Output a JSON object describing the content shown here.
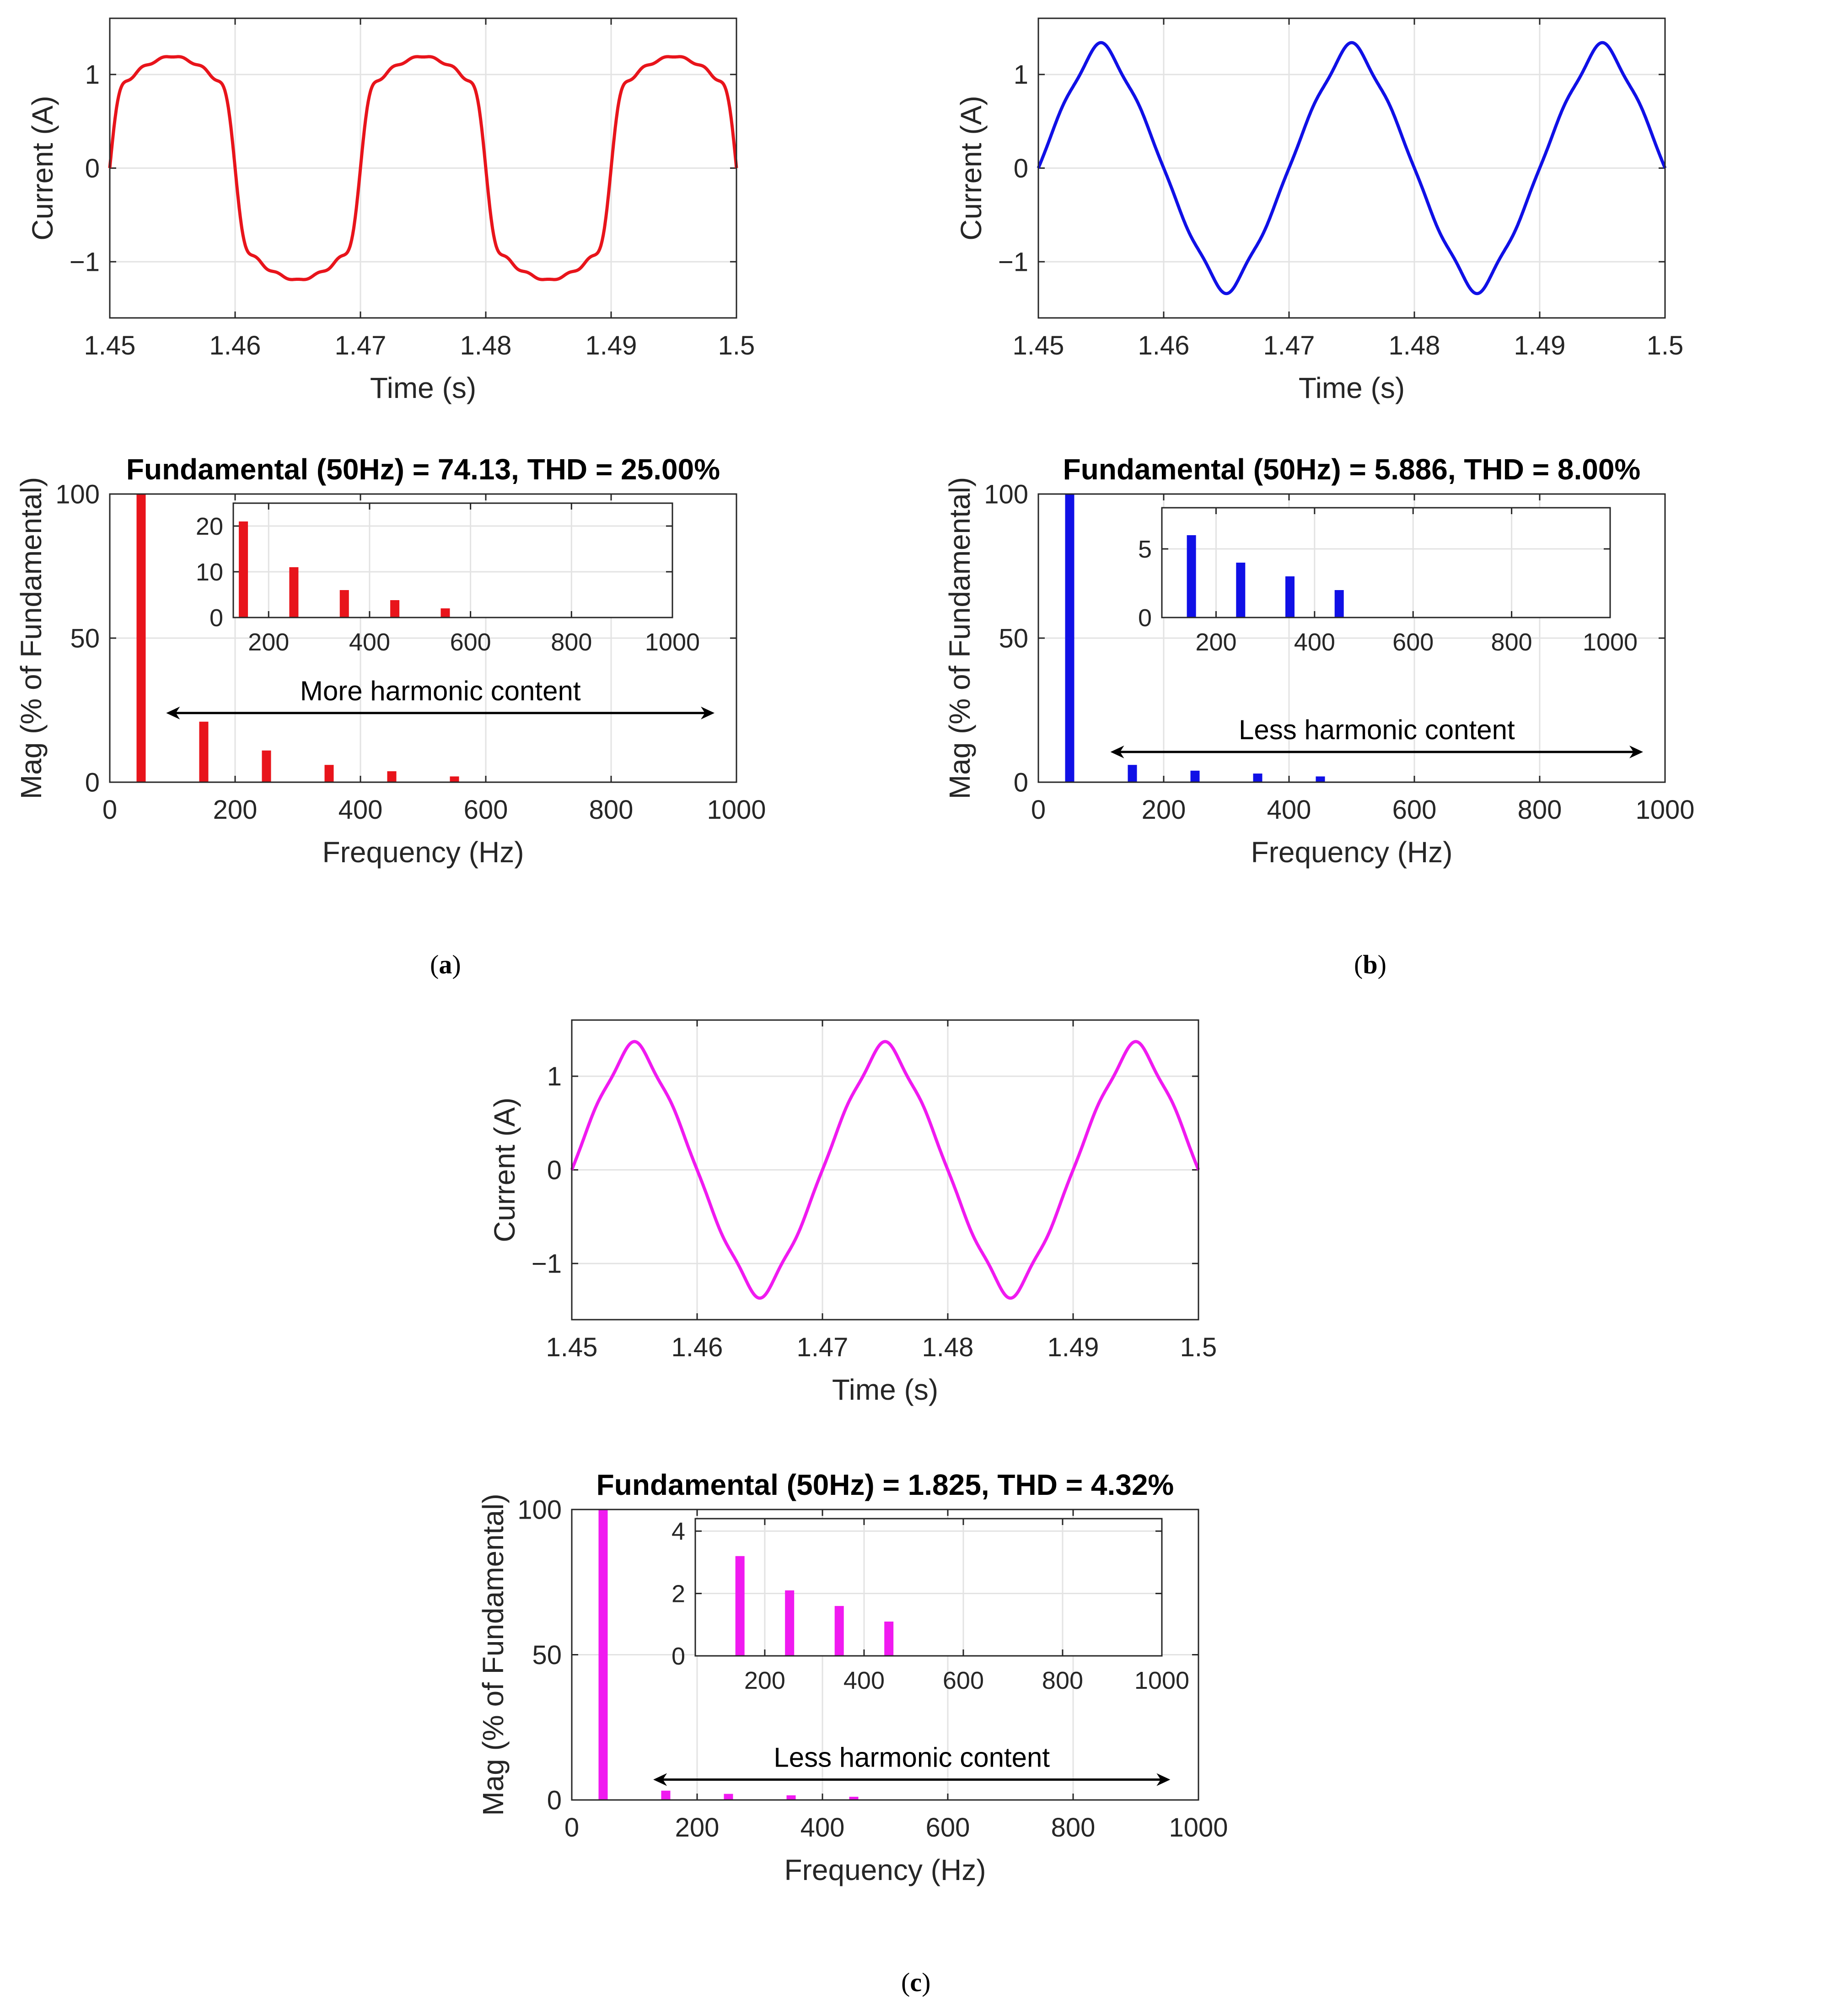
{
  "panels": [
    {
      "letter": "a",
      "color": "#e8141b",
      "time": {
        "waveform": "quasi-square",
        "amplitude": 1.19,
        "xlabel": "Time (s)",
        "ylabel": "Current (A)",
        "xlim": [
          1.45,
          1.5
        ],
        "ylim": [
          -1.6,
          1.6
        ],
        "xticks": [
          1.45,
          1.46,
          1.47,
          1.48,
          1.49,
          1.5
        ],
        "xticklabels": [
          "1.45",
          "1.46",
          "1.47",
          "1.48",
          "1.49",
          "1.5"
        ],
        "yticks": [
          -1,
          0,
          1
        ],
        "yticklabels": [
          "−1",
          "0",
          "1"
        ]
      },
      "spectrum": {
        "title": "Fundamental (50Hz) = 74.13,  THD = 25.00%",
        "xlabel": "Frequency (Hz)",
        "ylabel": "Mag (% of Fundamental)",
        "annotation": "More harmonic content",
        "xlim": [
          0,
          1000
        ],
        "ylim": [
          0,
          100
        ],
        "xticks": [
          0,
          200,
          400,
          600,
          800,
          1000
        ],
        "xticklabels": [
          "0",
          "200",
          "400",
          "600",
          "800",
          "1000"
        ],
        "yticks": [
          0,
          50,
          100
        ],
        "yticklabels": [
          "0",
          "50",
          "100"
        ],
        "arrow_x": [
          90,
          965
        ],
        "arrow_y": 24,
        "bars": [
          {
            "f": 50,
            "mag": 100
          },
          {
            "f": 150,
            "mag": 21
          },
          {
            "f": 250,
            "mag": 11
          },
          {
            "f": 350,
            "mag": 6
          },
          {
            "f": 450,
            "mag": 3.8
          },
          {
            "f": 550,
            "mag": 2
          }
        ],
        "inset": {
          "xlim": [
            130,
            1000
          ],
          "ylim": [
            0,
            25
          ],
          "xticks": [
            200,
            400,
            600,
            800,
            1000
          ],
          "xticklabels": [
            "200",
            "400",
            "600",
            "800",
            "1000"
          ],
          "yticks": [
            0,
            10,
            20
          ],
          "yticklabels": [
            "0",
            "10",
            "20"
          ],
          "bars": [
            {
              "f": 150,
              "mag": 21
            },
            {
              "f": 250,
              "mag": 11
            },
            {
              "f": 350,
              "mag": 6
            },
            {
              "f": 450,
              "mag": 3.8
            },
            {
              "f": 550,
              "mag": 2
            }
          ]
        }
      }
    },
    {
      "letter": "b",
      "color": "#1010e6",
      "time": {
        "waveform": "sine-harmonics",
        "amplitude": 1.34,
        "xlabel": "Time (s)",
        "ylabel": "Current (A)",
        "xlim": [
          1.45,
          1.5
        ],
        "ylim": [
          -1.6,
          1.6
        ],
        "xticks": [
          1.45,
          1.46,
          1.47,
          1.48,
          1.49,
          1.5
        ],
        "xticklabels": [
          "1.45",
          "1.46",
          "1.47",
          "1.48",
          "1.49",
          "1.5"
        ],
        "yticks": [
          -1,
          0,
          1
        ],
        "yticklabels": [
          "−1",
          "0",
          "1"
        ]
      },
      "spectrum": {
        "title": "Fundamental (50Hz) = 5.886,  THD = 8.00%",
        "xlabel": "Frequency (Hz)",
        "ylabel": "Mag (% of Fundamental)",
        "annotation": "Less harmonic content",
        "xlim": [
          0,
          1000
        ],
        "ylim": [
          0,
          100
        ],
        "xticks": [
          0,
          200,
          400,
          600,
          800,
          1000
        ],
        "xticklabels": [
          "0",
          "200",
          "400",
          "600",
          "800",
          "1000"
        ],
        "yticks": [
          0,
          50,
          100
        ],
        "yticklabels": [
          "0",
          "50",
          "100"
        ],
        "arrow_x": [
          115,
          965
        ],
        "arrow_y": 10.5,
        "bars": [
          {
            "f": 50,
            "mag": 100
          },
          {
            "f": 150,
            "mag": 6
          },
          {
            "f": 250,
            "mag": 4
          },
          {
            "f": 350,
            "mag": 3
          },
          {
            "f": 450,
            "mag": 2
          }
        ],
        "inset": {
          "xlim": [
            90,
            1000
          ],
          "ylim": [
            0,
            8
          ],
          "xticks": [
            200,
            400,
            600,
            800,
            1000
          ],
          "xticklabels": [
            "200",
            "400",
            "600",
            "800",
            "1000"
          ],
          "yticks": [
            0,
            5
          ],
          "yticklabels": [
            "0",
            "5"
          ],
          "bars": [
            {
              "f": 150,
              "mag": 6
            },
            {
              "f": 250,
              "mag": 4
            },
            {
              "f": 350,
              "mag": 3
            },
            {
              "f": 450,
              "mag": 2
            }
          ]
        }
      }
    },
    {
      "letter": "c",
      "color": "#f01af0",
      "time": {
        "waveform": "sine-harmonics",
        "amplitude": 1.37,
        "xlabel": "Time (s)",
        "ylabel": "Current (A)",
        "xlim": [
          1.45,
          1.5
        ],
        "ylim": [
          -1.6,
          1.6
        ],
        "xticks": [
          1.45,
          1.46,
          1.47,
          1.48,
          1.49,
          1.5
        ],
        "xticklabels": [
          "1.45",
          "1.46",
          "1.47",
          "1.48",
          "1.49",
          "1.5"
        ],
        "yticks": [
          -1,
          0,
          1
        ],
        "yticklabels": [
          "−1",
          "0",
          "1"
        ]
      },
      "spectrum": {
        "title": "Fundamental (50Hz) = 1.825,  THD = 4.32%",
        "xlabel": "Frequency (Hz)",
        "ylabel": "Mag (% of Fundamental)",
        "annotation": "Less harmonic content",
        "xlim": [
          0,
          1000
        ],
        "ylim": [
          0,
          100
        ],
        "xticks": [
          0,
          200,
          400,
          600,
          800,
          1000
        ],
        "xticklabels": [
          "0",
          "200",
          "400",
          "600",
          "800",
          "1000"
        ],
        "yticks": [
          0,
          50,
          100
        ],
        "yticklabels": [
          "0",
          "50",
          "100"
        ],
        "arrow_x": [
          130,
          955
        ],
        "arrow_y": 7,
        "bars": [
          {
            "f": 50,
            "mag": 100
          },
          {
            "f": 150,
            "mag": 3.2
          },
          {
            "f": 250,
            "mag": 2.1
          },
          {
            "f": 350,
            "mag": 1.6
          },
          {
            "f": 450,
            "mag": 1.1
          }
        ],
        "inset": {
          "xlim": [
            60,
            1000
          ],
          "ylim": [
            0,
            4.4
          ],
          "xticks": [
            200,
            400,
            600,
            800,
            1000
          ],
          "xticklabels": [
            "200",
            "400",
            "600",
            "800",
            "1000"
          ],
          "yticks": [
            0,
            2,
            4
          ],
          "yticklabels": [
            "0",
            "2",
            "4"
          ],
          "bars": [
            {
              "f": 150,
              "mag": 3.2
            },
            {
              "f": 250,
              "mag": 2.1
            },
            {
              "f": 350,
              "mag": 1.6
            },
            {
              "f": 450,
              "mag": 1.1
            }
          ]
        }
      }
    }
  ],
  "chart_data": [
    {
      "type": "line",
      "title": "",
      "xlabel": "Time (s)",
      "ylabel": "Current (A)",
      "xlim": [
        1.45,
        1.5
      ],
      "ylim": [
        -1.6,
        1.6
      ],
      "series": [
        {
          "values_description": "",
          "peak": 1.19
        }
      ],
      "grid": true
    },
    {
      "type": "bar",
      "title": "Fundamental (50Hz) = 74.13,  THD = 25.00%",
      "xlabel": "Frequency (Hz)",
      "ylabel": "Mag (% of Fundamental)",
      "xlim": [
        0,
        1000
      ],
      "ylim": [
        0,
        100
      ],
      "x": [
        50,
        150,
        250,
        350,
        450,
        550
      ],
      "values": [
        100,
        21,
        11,
        6,
        3.8,
        2
      ],
      "grid": true
    },
    {
      "type": "line",
      "title": "",
      "xlabel": "Time (s)",
      "ylabel": "Current (A)",
      "xlim": [
        1.45,
        1.5
      ],
      "ylim": [
        -1.6,
        1.6
      ],
      "series": [
        {
          "values_description": "",
          "peak": 1.34
        }
      ],
      "grid": true
    },
    {
      "type": "bar",
      "title": "Fundamental (50Hz) = 5.886,  THD = 8.00%",
      "xlabel": "Frequency (Hz)",
      "ylabel": "Mag (% of Fundamental)",
      "xlim": [
        0,
        1000
      ],
      "ylim": [
        0,
        100
      ],
      "x": [
        50,
        150,
        250,
        350,
        450
      ],
      "values": [
        100,
        6,
        4,
        3,
        2
      ],
      "grid": true
    },
    {
      "type": "line",
      "title": "",
      "xlabel": "Time (s)",
      "ylabel": "Current (A)",
      "xlim": [
        1.45,
        1.5
      ],
      "ylim": [
        -1.6,
        1.6
      ],
      "series": [
        {
          "values_description": "",
          "peak": 1.37
        }
      ],
      "grid": true
    },
    {
      "type": "bar",
      "title": "Fundamental (50Hz) = 1.825,  THD = 4.32%",
      "xlabel": "Frequency (Hz)",
      "ylabel": "Mag (% of Fundamental)",
      "xlim": [
        0,
        1000
      ],
      "ylim": [
        0,
        100
      ],
      "x": [
        50,
        150,
        250,
        350,
        450
      ],
      "values": [
        100,
        3.2,
        2.1,
        1.6,
        1.1
      ],
      "grid": true
    }
  ]
}
